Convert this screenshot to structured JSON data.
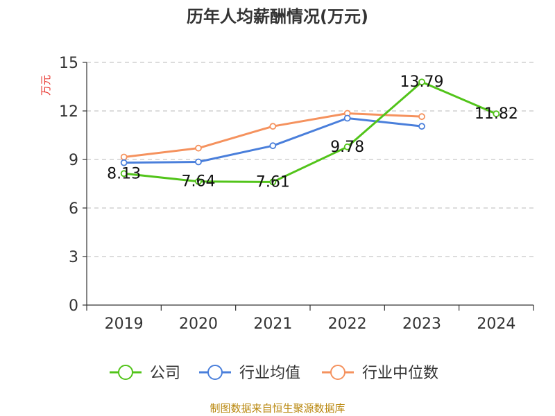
{
  "chart_data": {
    "type": "line",
    "title": "历年人均薪酬情况(万元)",
    "ylabel": "万元",
    "xlabel": "",
    "categories": [
      "2019",
      "2020",
      "2021",
      "2022",
      "2023",
      "2024"
    ],
    "yticks": [
      "0",
      "3",
      "6",
      "9",
      "12",
      "15"
    ],
    "ylim": [
      0,
      15
    ],
    "grid": true,
    "legend_position": "bottom",
    "series": [
      {
        "name": "公司",
        "color": "#52c41a",
        "values": [
          8.13,
          7.64,
          7.61,
          9.78,
          13.79,
          11.82
        ],
        "labels": [
          "8.13",
          "7.64",
          "7.61",
          "9.78",
          "13.79",
          "11.82"
        ]
      },
      {
        "name": "行业均值",
        "color": "#4a7fdb",
        "values": [
          8.8,
          8.85,
          9.85,
          11.55,
          11.05,
          null
        ]
      },
      {
        "name": "行业中位数",
        "color": "#f5925e",
        "values": [
          9.15,
          9.7,
          11.05,
          11.85,
          11.65,
          null
        ]
      }
    ]
  },
  "source": "制图数据来自恒生聚源数据库"
}
